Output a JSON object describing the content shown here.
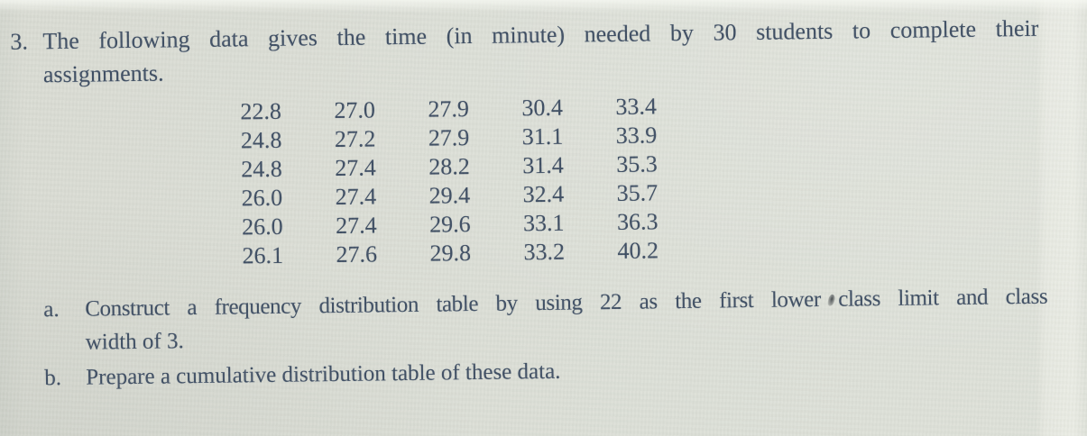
{
  "problem": {
    "number": "3.",
    "statement_line1": "The following data gives the time (in minute) needed by 30 students to complete their",
    "statement_line2": "assignments."
  },
  "data_table": {
    "rows": [
      [
        "22.8",
        "27.0",
        "27.9",
        "30.4",
        "33.4"
      ],
      [
        "24.8",
        "27.2",
        "27.9",
        "31.1",
        "33.9"
      ],
      [
        "24.8",
        "27.4",
        "28.2",
        "31.4",
        "35.3"
      ],
      [
        "26.0",
        "27.4",
        "29.4",
        "32.4",
        "35.7"
      ],
      [
        "26.0",
        "27.4",
        "29.6",
        "33.1",
        "36.3"
      ],
      [
        "26.1",
        "27.6",
        "29.8",
        "33.2",
        "40.2"
      ]
    ]
  },
  "parts": {
    "a": {
      "label": "a.",
      "line1": "Construct a frequency distribution table by using 22 as the first lower class limit and class",
      "line2": "width of 3."
    },
    "b": {
      "label": "b.",
      "text": "Prepare a cumulative distribution table of these data."
    }
  },
  "colors": {
    "paper": "#dcdfd7",
    "ink": "#3e4e63"
  }
}
